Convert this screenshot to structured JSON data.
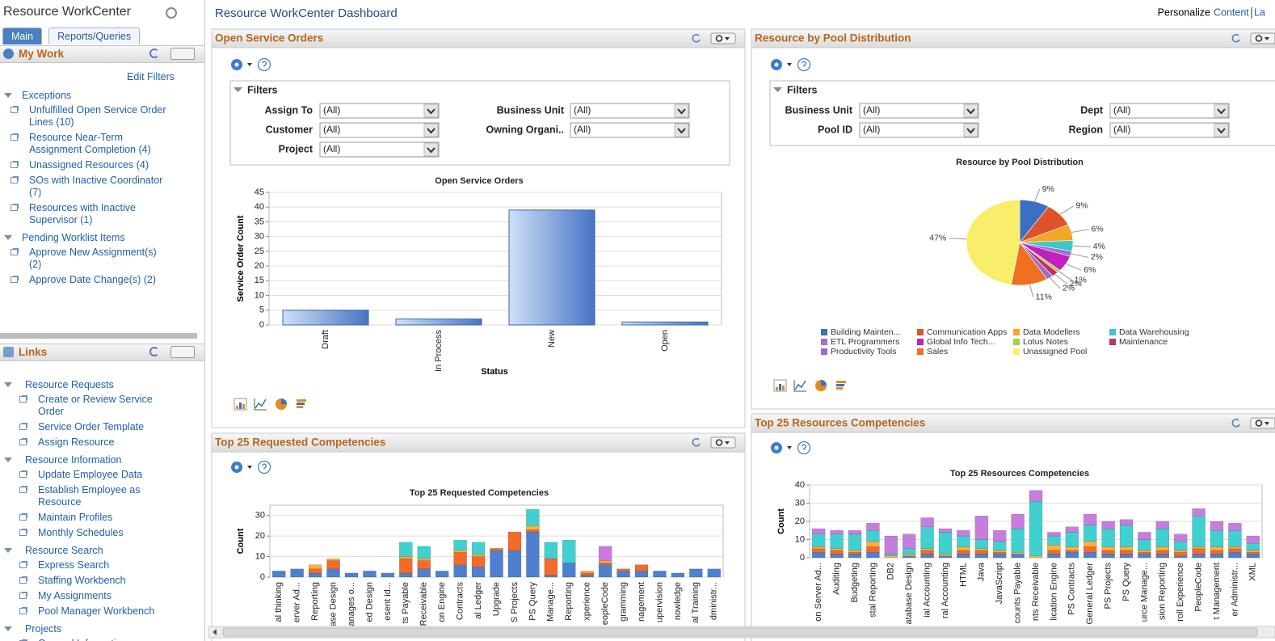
{
  "sidebar": {
    "title": "Resource WorkCenter",
    "tabs": [
      "Main",
      "Reports/Queries"
    ],
    "my_work": {
      "title": "My Work",
      "edit_filters": "Edit Filters",
      "groups": [
        {
          "title": "Exceptions",
          "items": [
            "Unfulfilled Open Service Order Lines (10)",
            "Resource Near-Term Assignment Completion (4)",
            "Unassigned Resources (4)",
            "SOs with Inactive Coordinator (7)",
            "Resources with Inactive Supervisor (1)"
          ]
        },
        {
          "title": "Pending Worklist Items",
          "items": [
            "Approve New Assignment(s) (2)",
            "Approve Date Change(s) (2)"
          ]
        }
      ]
    },
    "links": {
      "title": "Links",
      "groups": [
        {
          "title": "Resource Requests",
          "items": [
            "Create or Review Service Order",
            "Service Order Template",
            "Assign Resource"
          ]
        },
        {
          "title": "Resource Information",
          "items": [
            "Update Employee Data",
            "Establish Employee as Resource",
            "Maintain Profiles",
            "Monthly Schedules"
          ]
        },
        {
          "title": "Resource Search",
          "items": [
            "Express Search",
            "Staffing Workbench",
            "My Assignments",
            "Pool Manager Workbench"
          ]
        },
        {
          "title": "Projects",
          "items": [
            "General Information"
          ]
        }
      ]
    }
  },
  "header": {
    "title": "Resource WorkCenter Dashboard",
    "personalize": "Personalize",
    "content": "Content",
    "layout": "La"
  },
  "pagelets": [
    {
      "title": "Open Service Orders",
      "filters_title": "Filters",
      "filters": [
        {
          "label": "Assign To",
          "value": "(All)"
        },
        {
          "label": "Business Unit",
          "value": "(All)"
        },
        {
          "label": "Customer",
          "value": "(All)"
        },
        {
          "label": "Owning Organi..",
          "value": "(All)"
        },
        {
          "label": "Project",
          "value": "(All)"
        }
      ]
    },
    {
      "title": "Resource by Pool Distribution",
      "filters_title": "Filters",
      "filters": [
        {
          "label": "Business Unit",
          "value": "(All)"
        },
        {
          "label": "Dept",
          "value": "(All)"
        },
        {
          "label": "Pool ID",
          "value": "(All)"
        },
        {
          "label": "Region",
          "value": "(All)"
        }
      ]
    },
    {
      "title": "Top 25 Requested Competencies"
    },
    {
      "title": "Top 25 Resources Competencies"
    }
  ],
  "chart_data": [
    {
      "type": "bar",
      "title": "Open Service Orders",
      "x_label": "Status",
      "y_label": "Service Order Count",
      "categories": [
        "Draft",
        "In Process",
        "New",
        "Open"
      ],
      "values": [
        5,
        2,
        39,
        1
      ],
      "ylim": [
        0,
        45
      ],
      "yticks": [
        0,
        5,
        10,
        15,
        20,
        25,
        30,
        35,
        40,
        45
      ],
      "grid": true
    },
    {
      "type": "pie",
      "title": "Resource by Pool Distribution",
      "categories": [
        "Building Mainten...",
        "Communication Apps",
        "Data Modellers",
        "Data Warehousing",
        "ETL Programmers",
        "Global Info Tech...",
        "Lotus Notes",
        "Maintenance",
        "Productivity Tools",
        "Sales",
        "Unassigned Pool"
      ],
      "values": [
        9,
        9,
        6,
        4,
        2,
        6,
        1,
        2,
        2,
        11,
        47
      ],
      "value_labels": [
        "9%",
        "9%",
        "6%",
        "4%",
        "2%",
        "6%",
        "1%",
        "2%",
        "2%",
        "11%",
        "47%"
      ],
      "colors": [
        "#3b6fc2",
        "#e0522a",
        "#f5a623",
        "#3cc8c8",
        "#a070d0",
        "#c020c0",
        "#a8d040",
        "#c03060",
        "#9a6ad0",
        "#f07020",
        "#f8ee6a"
      ]
    },
    {
      "type": "stacked_bar",
      "title": "Top 25 Requested Competencies",
      "y_label": "Count",
      "categories": [
        "al thinking",
        "erver Ad...",
        "Reporting",
        "ase Design",
        "anages o...",
        "ed Design",
        "esent id...",
        "ts Payable",
        "Receivable",
        "on Engine",
        "Contracts",
        "al Ledger",
        "Upgrade",
        "S Projects",
        "PS Query",
        "Manage...",
        "Reporting",
        "xperience",
        "eopleCode",
        "gramming",
        "nagement",
        "upervision",
        "nowledge",
        "al Training",
        "dministr..."
      ],
      "series": [
        {
          "color": "#4f80d0",
          "values": [
            3,
            4,
            2,
            4,
            2,
            3,
            2,
            2,
            4,
            3,
            6,
            5,
            13,
            13,
            22,
            1,
            7,
            1,
            6,
            3,
            3,
            3,
            2,
            4,
            4
          ]
        },
        {
          "color": "#f26b2a",
          "values": [
            0,
            0,
            2,
            4,
            0,
            0,
            0,
            7,
            4,
            0,
            6,
            5,
            1,
            9,
            1,
            8,
            0,
            1,
            1,
            1,
            3,
            0,
            0,
            0,
            0
          ]
        },
        {
          "color": "#fbb040",
          "values": [
            0,
            0,
            2,
            1,
            0,
            0,
            0,
            1,
            1,
            0,
            1,
            1,
            0,
            0,
            2,
            0,
            0,
            1,
            1,
            0,
            0,
            0,
            0,
            0,
            0
          ]
        },
        {
          "color": "#40d0d0",
          "values": [
            0,
            0,
            0,
            0,
            0,
            0,
            0,
            7,
            6,
            0,
            5,
            6,
            0,
            0,
            8,
            8,
            11,
            0,
            0,
            0,
            0,
            0,
            0,
            0,
            0
          ]
        },
        {
          "color": "#c77dde",
          "values": [
            0,
            0,
            0,
            0,
            0,
            0,
            0,
            0,
            0,
            0,
            0,
            0,
            0,
            0,
            0,
            0,
            0,
            0,
            7,
            0,
            0,
            0,
            0,
            0,
            0
          ]
        }
      ],
      "ylim": [
        0,
        35
      ],
      "yticks": [
        0,
        10,
        20,
        30
      ],
      "grid": true
    },
    {
      "type": "stacked_bar",
      "title": "Top 25 Resources Competencies",
      "y_label": "Count",
      "categories": [
        "on Server Ad...",
        "Auditing",
        "Budgeting",
        "stal Reporting",
        "DB2",
        "atabase Design",
        "ial Accounting",
        "ral Accounting",
        "HTML",
        "Java",
        "JavaScript",
        "counts Payable",
        "nts Receivable",
        "lication Engine",
        "PS Contracts",
        "General Ledger",
        "PS Projects",
        "PS Query",
        "urce Manage...",
        "sion Reporting",
        "roll Experience",
        "PeopleCode",
        "t Management",
        "er Administr...",
        "XML"
      ],
      "series": [
        {
          "color": "#4f80d0",
          "values": [
            3,
            2,
            2,
            3,
            0,
            1,
            2,
            1,
            2,
            2,
            2,
            2,
            0,
            2,
            3,
            3,
            2,
            2,
            2,
            2,
            1,
            2,
            2,
            3,
            2
          ]
        },
        {
          "color": "#f26b2a",
          "values": [
            2,
            2,
            1,
            3,
            0,
            0,
            2,
            0,
            2,
            2,
            1,
            0,
            0,
            2,
            1,
            3,
            2,
            2,
            1,
            2,
            2,
            3,
            2,
            2,
            1
          ]
        },
        {
          "color": "#fbb040",
          "values": [
            1,
            1,
            1,
            3,
            1,
            1,
            1,
            1,
            2,
            1,
            1,
            1,
            1,
            3,
            2,
            3,
            2,
            2,
            1,
            2,
            1,
            1,
            2,
            1,
            1
          ]
        },
        {
          "color": "#40d0d0",
          "values": [
            7,
            8,
            9,
            6,
            1,
            3,
            12,
            12,
            6,
            5,
            5,
            13,
            30,
            5,
            8,
            9,
            10,
            12,
            6,
            10,
            5,
            17,
            9,
            9,
            4
          ]
        },
        {
          "color": "#c77dde",
          "values": [
            3,
            2,
            2,
            4,
            10,
            8,
            5,
            2,
            3,
            13,
            6,
            8,
            6,
            2,
            3,
            6,
            4,
            3,
            4,
            4,
            4,
            4,
            5,
            4,
            4
          ]
        }
      ],
      "ylim": [
        0,
        40
      ],
      "yticks": [
        0,
        10,
        20,
        30,
        40
      ],
      "grid": true
    }
  ]
}
